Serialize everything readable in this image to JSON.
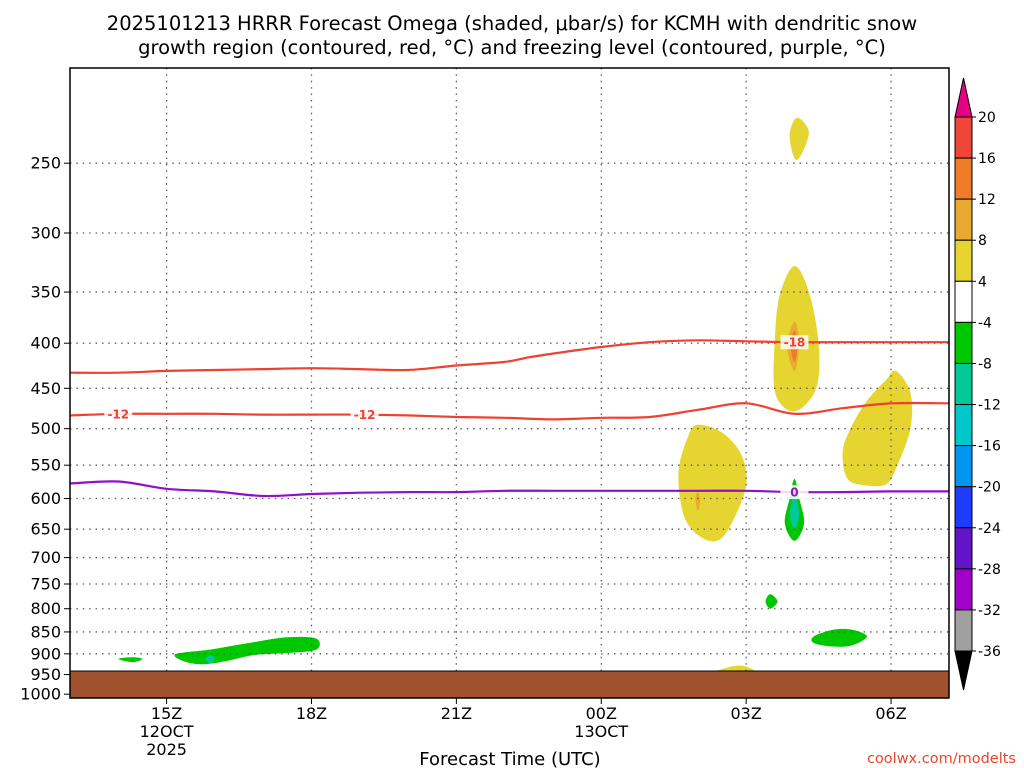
{
  "chart_data": {
    "type": "contour-filled",
    "title_lines": [
      "2025101213 HRRR Forecast Omega (shaded, μbar/s) for KCMH with dendritic snow",
      "growth region (contoured, red, °C) and freezing level (contoured, purple, °C)"
    ],
    "xlabel": "Forecast Time (UTC)",
    "credit": "coolwx.com/modelts",
    "ylabel": "",
    "y_axis": {
      "scale": "log",
      "range": [
        195,
        1010
      ],
      "ticks": [
        250,
        300,
        350,
        400,
        450,
        500,
        550,
        600,
        650,
        700,
        750,
        800,
        850,
        900,
        950,
        1000
      ],
      "inverted": true
    },
    "x_axis": {
      "range_hours": [
        13.0,
        31.2
      ],
      "ticks": [
        {
          "hour": 15,
          "lines": [
            "15Z",
            "12OCT",
            "2025"
          ]
        },
        {
          "hour": 18,
          "lines": [
            "18Z"
          ]
        },
        {
          "hour": 21,
          "lines": [
            "21Z"
          ]
        },
        {
          "hour": 24,
          "lines": [
            "00Z",
            "13OCT"
          ]
        },
        {
          "hour": 27,
          "lines": [
            "03Z"
          ]
        },
        {
          "hour": 30,
          "lines": [
            "06Z"
          ]
        }
      ]
    },
    "grid": true,
    "colorbar": {
      "labels": [
        20,
        16,
        12,
        8,
        4,
        -4,
        -8,
        -12,
        -16,
        -20,
        -24,
        -28,
        -32,
        -36
      ],
      "bands": [
        {
          "lo": 16,
          "hi": 20,
          "color": "#f0463a"
        },
        {
          "lo": 12,
          "hi": 16,
          "color": "#f07c28"
        },
        {
          "lo": 8,
          "hi": 12,
          "color": "#e8aa30"
        },
        {
          "lo": 4,
          "hi": 8,
          "color": "#e6d530"
        },
        {
          "lo": -4,
          "hi": 4,
          "color": "#ffffff"
        },
        {
          "lo": -8,
          "hi": -4,
          "color": "#00c800"
        },
        {
          "lo": -12,
          "hi": -8,
          "color": "#00c896"
        },
        {
          "lo": -16,
          "hi": -12,
          "color": "#00c8c8"
        },
        {
          "lo": -20,
          "hi": -16,
          "color": "#0096f0"
        },
        {
          "lo": -24,
          "hi": -20,
          "color": "#1e3cff"
        },
        {
          "lo": -28,
          "hi": -24,
          "color": "#6414c8"
        },
        {
          "lo": -32,
          "hi": -28,
          "color": "#a000c8"
        },
        {
          "lo": -36,
          "hi": -32,
          "color": "#a0a0a0"
        }
      ],
      "over_color": "#e60082",
      "under_color": "#000000"
    },
    "colors": {
      "dgz": "#f04030",
      "freezing": "#9010c8",
      "ground": "#a0522d"
    },
    "isotherms": [
      {
        "label": "-18",
        "role": "dgz-top",
        "points": [
          [
            13.0,
            432
          ],
          [
            14.0,
            432
          ],
          [
            15.0,
            430
          ],
          [
            16.0,
            429
          ],
          [
            17.0,
            428
          ],
          [
            18.0,
            427
          ],
          [
            19.0,
            428
          ],
          [
            20.0,
            429
          ],
          [
            21.0,
            424
          ],
          [
            22.0,
            420
          ],
          [
            22.5,
            415
          ],
          [
            23.0,
            411
          ],
          [
            24.0,
            404
          ],
          [
            25.0,
            399
          ],
          [
            26.0,
            397
          ],
          [
            27.0,
            398
          ],
          [
            28.0,
            399
          ],
          [
            29.0,
            399
          ],
          [
            30.0,
            399
          ],
          [
            31.2,
            399
          ]
        ],
        "label_at": [
          28.0
        ]
      },
      {
        "label": "-12",
        "role": "dgz-bottom",
        "points": [
          [
            13.0,
            483
          ],
          [
            14.0,
            481
          ],
          [
            15.0,
            481
          ],
          [
            16.0,
            481
          ],
          [
            17.0,
            482
          ],
          [
            18.0,
            482
          ],
          [
            19.0,
            482
          ],
          [
            20.0,
            483
          ],
          [
            21.0,
            485
          ],
          [
            22.0,
            486
          ],
          [
            23.0,
            488
          ],
          [
            24.0,
            486
          ],
          [
            25.0,
            485
          ],
          [
            26.0,
            476
          ],
          [
            27.0,
            468
          ],
          [
            28.0,
            481
          ],
          [
            29.0,
            474
          ],
          [
            30.0,
            468
          ],
          [
            31.2,
            468
          ]
        ],
        "label_at": [
          14.0,
          19.1
        ]
      },
      {
        "label": "0",
        "role": "freezing-level",
        "points": [
          [
            13.0,
            577
          ],
          [
            14.0,
            574
          ],
          [
            15.0,
            585
          ],
          [
            16.0,
            589
          ],
          [
            17.0,
            596
          ],
          [
            18.0,
            593
          ],
          [
            19.0,
            591
          ],
          [
            20.0,
            590
          ],
          [
            21.0,
            590
          ],
          [
            22.0,
            588
          ],
          [
            23.0,
            588
          ],
          [
            24.0,
            588
          ],
          [
            25.0,
            588
          ],
          [
            26.0,
            588
          ],
          [
            27.0,
            588
          ],
          [
            28.0,
            590
          ],
          [
            29.0,
            590
          ],
          [
            30.0,
            589
          ],
          [
            31.2,
            589
          ]
        ],
        "label_at": [
          28.0
        ]
      }
    ],
    "omega_regions": [
      {
        "value": 4,
        "points": [
          [
            27.9,
            233
          ],
          [
            28.05,
            222
          ],
          [
            28.3,
            231
          ],
          [
            28.05,
            248
          ]
        ]
      },
      {
        "value": 4,
        "points": [
          [
            27.6,
            392
          ],
          [
            27.7,
            352
          ],
          [
            28.0,
            327
          ],
          [
            28.3,
            350
          ],
          [
            28.5,
            400
          ],
          [
            28.45,
            450
          ],
          [
            28.0,
            478
          ],
          [
            27.6,
            455
          ]
        ]
      },
      {
        "value": 8,
        "points": [
          [
            27.85,
            403
          ],
          [
            28.0,
            378
          ],
          [
            28.1,
            400
          ],
          [
            28.0,
            430
          ]
        ]
      },
      {
        "value": 12,
        "points": [
          [
            27.92,
            403
          ],
          [
            28.0,
            387
          ],
          [
            28.06,
            405
          ],
          [
            28.0,
            420
          ]
        ]
      },
      {
        "value": 4,
        "points": [
          [
            25.6,
            560
          ],
          [
            25.8,
            510
          ],
          [
            26.0,
            495
          ],
          [
            26.5,
            505
          ],
          [
            26.9,
            535
          ],
          [
            27.0,
            580
          ],
          [
            26.7,
            640
          ],
          [
            26.4,
            670
          ],
          [
            26.0,
            660
          ],
          [
            25.7,
            625
          ]
        ]
      },
      {
        "value": 8,
        "points": [
          [
            25.95,
            600
          ],
          [
            26.0,
            590
          ],
          [
            26.05,
            602
          ],
          [
            26.0,
            620
          ]
        ]
      },
      {
        "value": 4,
        "points": [
          [
            29.0,
            530
          ],
          [
            29.2,
            495
          ],
          [
            29.5,
            465
          ],
          [
            29.9,
            440
          ],
          [
            30.1,
            430
          ],
          [
            30.4,
            455
          ],
          [
            30.4,
            500
          ],
          [
            30.1,
            555
          ],
          [
            29.9,
            578
          ],
          [
            29.5,
            580
          ],
          [
            29.1,
            570
          ]
        ]
      },
      {
        "value": 4,
        "points": [
          [
            23.2,
            980
          ],
          [
            23.6,
            960
          ],
          [
            24.0,
            952
          ],
          [
            24.6,
            955
          ],
          [
            25.3,
            963
          ],
          [
            25.8,
            955
          ],
          [
            26.3,
            943
          ],
          [
            26.8,
            928
          ],
          [
            27.1,
            935
          ],
          [
            27.3,
            955
          ],
          [
            27.6,
            975
          ],
          [
            27.9,
            985
          ],
          [
            31.2,
            985
          ],
          [
            31.2,
            945
          ],
          [
            30.9,
            965
          ],
          [
            30.7,
            985
          ],
          [
            28.0,
            985
          ],
          [
            23.2,
            985
          ]
        ]
      },
      {
        "value": 8,
        "points": [
          [
            26.95,
            948
          ],
          [
            27.0,
            940
          ],
          [
            27.05,
            948
          ],
          [
            27.0,
            955
          ]
        ]
      },
      {
        "value": -4,
        "points": [
          [
            22.8,
            550
          ],
          [
            22.9,
            495
          ],
          [
            23.0,
            482
          ],
          [
            23.1,
            495
          ],
          [
            23.3,
            550
          ],
          [
            23.1,
            600
          ],
          [
            23.0,
            632
          ],
          [
            22.9,
            600
          ]
        ]
      },
      {
        "value": -4,
        "points": [
          [
            28.0,
            535
          ],
          [
            28.2,
            556
          ],
          [
            28.5,
            610
          ],
          [
            28.5,
            680
          ],
          [
            28.0,
            690
          ],
          [
            27.5,
            680
          ],
          [
            27.5,
            610
          ],
          [
            27.7,
            556
          ]
        ]
      },
      {
        "value": -8,
        "points": [
          [
            28.0,
            570
          ],
          [
            28.1,
            600
          ],
          [
            28.2,
            640
          ],
          [
            28.0,
            670
          ],
          [
            27.8,
            640
          ],
          [
            27.9,
            600
          ]
        ]
      },
      {
        "value": -12,
        "points": [
          [
            28.0,
            595
          ],
          [
            28.1,
            625
          ],
          [
            28.0,
            650
          ],
          [
            27.9,
            625
          ]
        ]
      },
      {
        "value": -4,
        "points": [
          [
            31.2,
            570
          ],
          [
            31.2,
            690
          ],
          [
            31.0,
            670
          ],
          [
            31.0,
            625
          ]
        ]
      },
      {
        "value": -4,
        "points": [
          [
            13.5,
            905
          ],
          [
            13.8,
            880
          ],
          [
            14.3,
            862
          ],
          [
            15.0,
            880
          ],
          [
            15.7,
            862
          ],
          [
            16.5,
            850
          ],
          [
            17.3,
            835
          ],
          [
            17.9,
            820
          ],
          [
            18.3,
            815
          ],
          [
            18.4,
            860
          ],
          [
            18.3,
            905
          ],
          [
            17.8,
            918
          ],
          [
            17.0,
            922
          ],
          [
            16.4,
            930
          ],
          [
            15.7,
            945
          ],
          [
            15.3,
            938
          ],
          [
            14.7,
            935
          ],
          [
            14.1,
            948
          ],
          [
            13.6,
            945
          ],
          [
            13.4,
            925
          ]
        ]
      },
      {
        "value": -8,
        "points": [
          [
            14.0,
            912
          ],
          [
            14.3,
            908
          ],
          [
            14.5,
            912
          ],
          [
            14.3,
            920
          ]
        ]
      },
      {
        "value": -8,
        "points": [
          [
            15.2,
            900
          ],
          [
            15.9,
            890
          ],
          [
            16.7,
            875
          ],
          [
            17.5,
            862
          ],
          [
            18.1,
            865
          ],
          [
            18.1,
            890
          ],
          [
            17.5,
            898
          ],
          [
            16.8,
            903
          ],
          [
            16.2,
            918
          ],
          [
            15.7,
            925
          ],
          [
            15.3,
            915
          ]
        ]
      },
      {
        "value": -12,
        "points": [
          [
            15.8,
            912
          ],
          [
            15.9,
            903
          ],
          [
            16.0,
            912
          ],
          [
            15.9,
            922
          ]
        ]
      },
      {
        "value": -4,
        "points": [
          [
            24.6,
            835
          ],
          [
            25.0,
            830
          ],
          [
            25.5,
            820
          ],
          [
            25.9,
            800
          ],
          [
            26.3,
            790
          ],
          [
            26.7,
            785
          ],
          [
            26.9,
            765
          ],
          [
            27.2,
            740
          ],
          [
            27.6,
            725
          ],
          [
            28.0,
            728
          ],
          [
            28.3,
            745
          ],
          [
            28.8,
            765
          ],
          [
            29.3,
            785
          ],
          [
            29.8,
            785
          ],
          [
            30.1,
            745
          ],
          [
            30.3,
            740
          ],
          [
            30.5,
            755
          ],
          [
            30.8,
            775
          ],
          [
            31.2,
            790
          ],
          [
            31.2,
            860
          ],
          [
            30.8,
            845
          ],
          [
            30.5,
            870
          ],
          [
            30.1,
            885
          ],
          [
            29.6,
            892
          ],
          [
            29.0,
            890
          ],
          [
            28.5,
            878
          ],
          [
            28.0,
            860
          ],
          [
            27.4,
            858
          ],
          [
            26.8,
            858
          ],
          [
            26.3,
            843
          ],
          [
            25.6,
            840
          ],
          [
            25.2,
            848
          ],
          [
            24.8,
            852
          ],
          [
            24.5,
            847
          ]
        ]
      },
      {
        "value": -8,
        "points": [
          [
            27.4,
            785
          ],
          [
            27.5,
            770
          ],
          [
            27.65,
            785
          ],
          [
            27.5,
            800
          ]
        ]
      },
      {
        "value": -8,
        "points": [
          [
            28.4,
            860
          ],
          [
            28.8,
            845
          ],
          [
            29.2,
            845
          ],
          [
            29.5,
            860
          ],
          [
            29.2,
            880
          ],
          [
            28.8,
            883
          ],
          [
            28.4,
            875
          ]
        ]
      }
    ],
    "omega_holes": [
      {
        "points": [
          [
            30.0,
            843
          ],
          [
            30.1,
            835
          ],
          [
            30.3,
            843
          ],
          [
            30.1,
            852
          ]
        ]
      }
    ]
  }
}
